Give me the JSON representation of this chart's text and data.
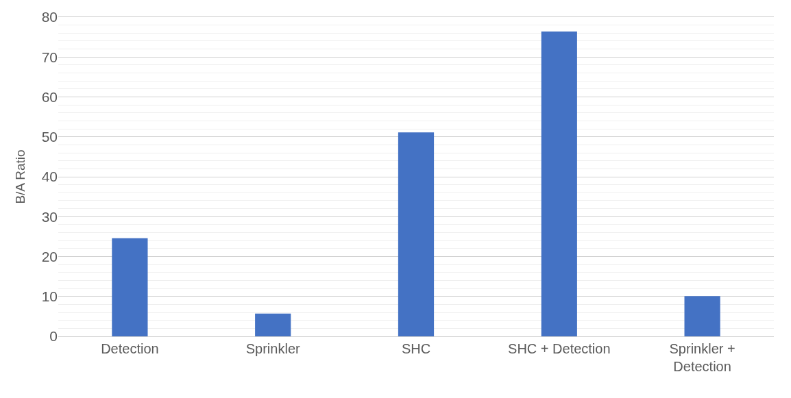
{
  "chart_data": {
    "type": "bar",
    "ylabel": "B/A Ratio",
    "categories": [
      "Detection",
      "Sprinkler",
      "SHC",
      "SHC + Detection",
      "Sprinkler + Detection"
    ],
    "values": [
      24.6,
      5.7,
      51.1,
      76.4,
      10.1
    ],
    "color": "#4472c4",
    "ylim": [
      0,
      80
    ],
    "yticks": [
      0,
      10,
      20,
      30,
      40,
      50,
      60,
      70,
      80
    ],
    "grid": "y"
  }
}
